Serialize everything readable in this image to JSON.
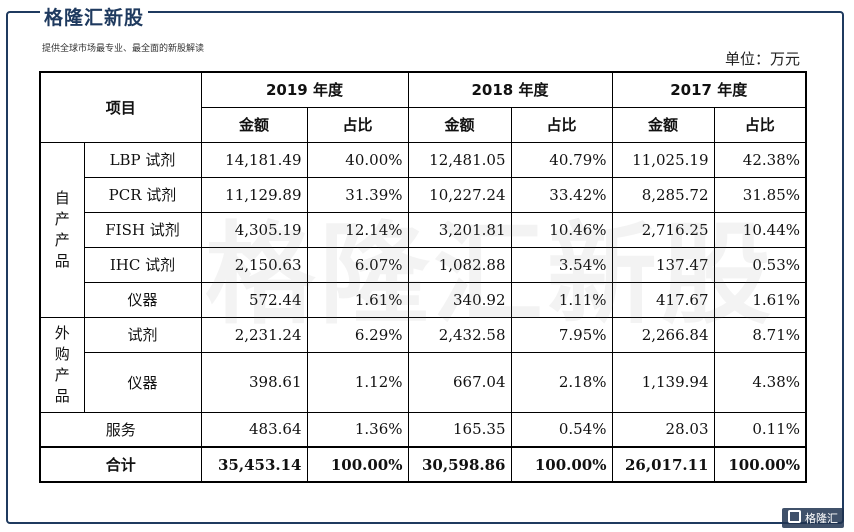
{
  "brand": {
    "title": "格隆汇新股",
    "subtitle": "提供全球市场最专业、最全面的新股解读",
    "badge": "格隆汇"
  },
  "unit": "单位：万元",
  "watermark": "格隆汇新股",
  "table": {
    "item_header": "项目",
    "years": [
      "2019 年度",
      "2018 年度",
      "2017 年度"
    ],
    "sub_headers": {
      "amount": "金额",
      "ratio": "占比"
    },
    "groups": {
      "self": "自产产品",
      "purchased": "外购产品"
    },
    "rows": [
      {
        "label": "LBP 试剂",
        "cells": [
          "14,181.49",
          "40.00%",
          "12,481.05",
          "40.79%",
          "11,025.19",
          "42.38%"
        ]
      },
      {
        "label": "PCR 试剂",
        "cells": [
          "11,129.89",
          "31.39%",
          "10,227.24",
          "33.42%",
          "8,285.72",
          "31.85%"
        ]
      },
      {
        "label": "FISH 试剂",
        "cells": [
          "4,305.19",
          "12.14%",
          "3,201.81",
          "10.46%",
          "2,716.25",
          "10.44%"
        ]
      },
      {
        "label": "IHC 试剂",
        "cells": [
          "2,150.63",
          "6.07%",
          "1,082.88",
          "3.54%",
          "137.47",
          "0.53%"
        ]
      },
      {
        "label": "仪器",
        "cells": [
          "572.44",
          "1.61%",
          "340.92",
          "1.11%",
          "417.67",
          "1.61%"
        ]
      },
      {
        "label": "试剂",
        "cells": [
          "2,231.24",
          "6.29%",
          "2,432.58",
          "7.95%",
          "2,266.84",
          "8.71%"
        ]
      },
      {
        "label": "仪器",
        "cells": [
          "398.61",
          "1.12%",
          "667.04",
          "2.18%",
          "1,139.94",
          "4.38%"
        ]
      },
      {
        "label": "服务",
        "cells": [
          "483.64",
          "1.36%",
          "165.35",
          "0.54%",
          "28.03",
          "0.11%"
        ]
      },
      {
        "label": "合计",
        "cells": [
          "35,453.14",
          "100.00%",
          "30,598.86",
          "100.00%",
          "26,017.11",
          "100.00%"
        ]
      }
    ]
  }
}
